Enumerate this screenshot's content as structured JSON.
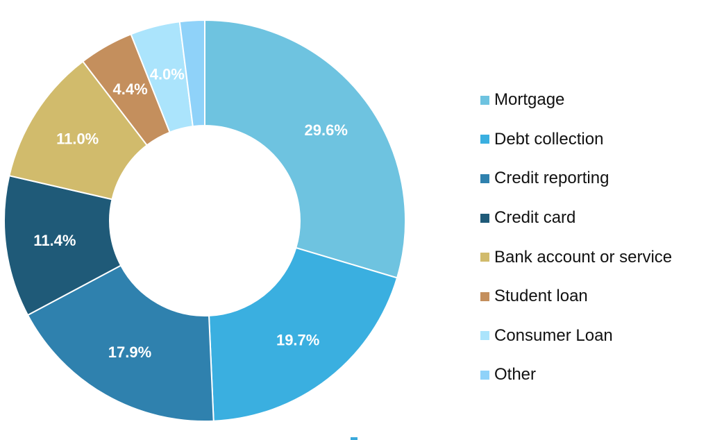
{
  "chart_data": {
    "type": "pie",
    "donut": true,
    "title": "",
    "start_angle_deg": 0,
    "direction": "clockwise",
    "legend_position": "right",
    "slices": [
      {
        "name": "Mortgage",
        "value": 29.6,
        "label": "29.6%",
        "color": "#6ec3e0"
      },
      {
        "name": "Debt collection",
        "value": 19.7,
        "label": "19.7%",
        "color": "#3aafe0"
      },
      {
        "name": "Credit reporting",
        "value": 17.9,
        "label": "17.9%",
        "color": "#2f81ae"
      },
      {
        "name": "Credit card",
        "value": 11.4,
        "label": "11.4%",
        "color": "#1f5a78"
      },
      {
        "name": "Bank account or service",
        "value": 11.0,
        "label": "11.0%",
        "color": "#d1bb6c"
      },
      {
        "name": "Student loan",
        "value": 4.4,
        "label": "4.4%",
        "color": "#c48f5d"
      },
      {
        "name": "Consumer Loan",
        "value": 4.0,
        "label": "4.0%",
        "color": "#abe4fc"
      },
      {
        "name": "Other",
        "value": 2.0,
        "label": "",
        "color": "#8fd2f9"
      }
    ]
  }
}
